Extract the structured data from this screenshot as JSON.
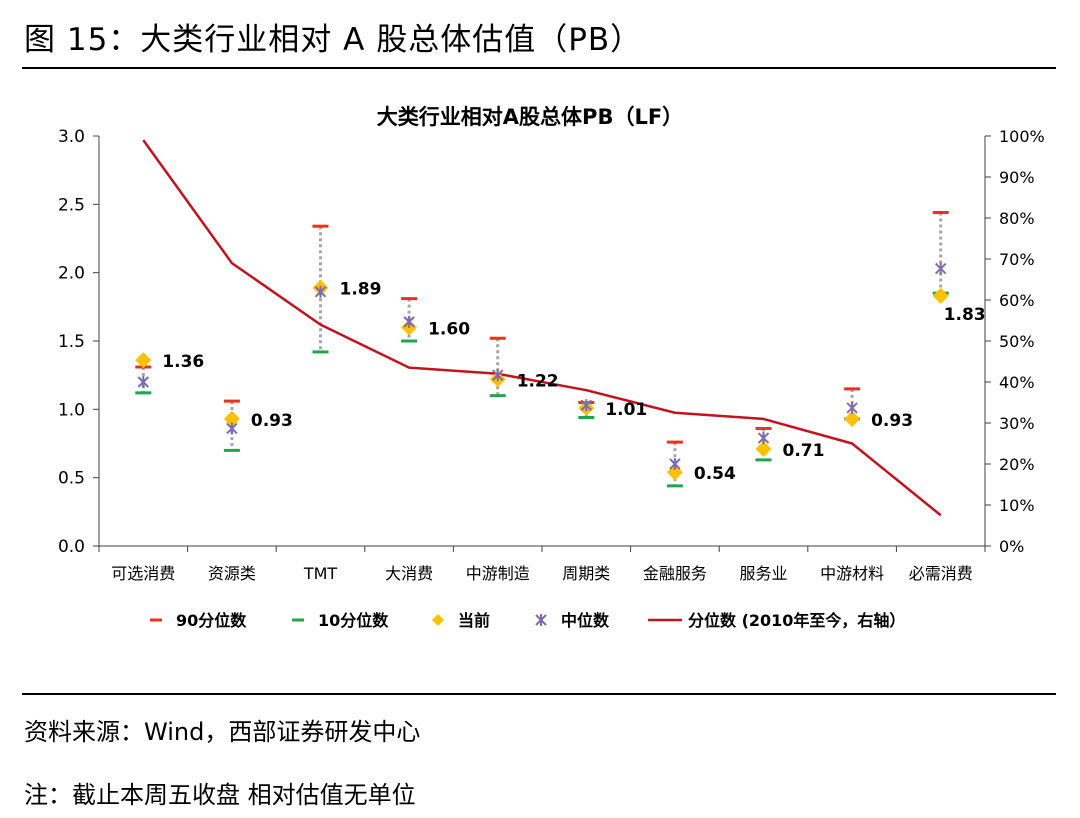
{
  "figure": {
    "title": "图 15：大类行业相对 A 股总体估值（PB）",
    "source": "资料来源：Wind，西部证券研发中心",
    "note": "注：截止本周五收盘 相对估值无单位"
  },
  "chart_data": {
    "type": "scatter",
    "title": "大类行业相对A股总体PB（LF）",
    "categories": [
      "可选消费",
      "资源类",
      "TMT",
      "大消费",
      "中游制造",
      "周期类",
      "金融服务",
      "服务业",
      "中游材料",
      "必需消费"
    ],
    "y_ticks": [
      "0.0",
      "0.5",
      "1.0",
      "1.5",
      "2.0",
      "2.5",
      "3.0"
    ],
    "y2_ticks": [
      "0%",
      "10%",
      "20%",
      "30%",
      "40%",
      "50%",
      "60%",
      "70%",
      "80%",
      "90%",
      "100%"
    ],
    "ylim": [
      0,
      3
    ],
    "y2lim": [
      0,
      100
    ],
    "series": [
      {
        "name": "90分位数",
        "values": [
          1.31,
          1.06,
          2.34,
          1.81,
          1.52,
          1.05,
          0.76,
          0.86,
          1.15,
          2.44
        ]
      },
      {
        "name": "10分位数",
        "values": [
          1.12,
          0.7,
          1.42,
          1.5,
          1.1,
          0.94,
          0.44,
          0.63,
          0.93,
          1.85
        ]
      },
      {
        "name": "当前",
        "values": [
          1.36,
          0.93,
          1.89,
          1.6,
          1.22,
          1.01,
          0.54,
          0.71,
          0.93,
          1.83
        ]
      },
      {
        "name": "中位数",
        "values": [
          1.2,
          0.86,
          1.86,
          1.64,
          1.25,
          1.03,
          0.6,
          0.79,
          1.01,
          2.03
        ]
      },
      {
        "name": "分位数（2010年至今，右轴）",
        "values": [
          99,
          69,
          54,
          43.5,
          42,
          38,
          32.5,
          31,
          25,
          7.5
        ]
      }
    ],
    "data_labels": [
      "1.36",
      "0.93",
      "1.89",
      "1.60",
      "1.22",
      "1.01",
      "0.54",
      "0.71",
      "0.93",
      "1.83"
    ],
    "legend": [
      {
        "label": "90分位数"
      },
      {
        "label": "10分位数"
      },
      {
        "label": "当前"
      },
      {
        "label": "中位数"
      },
      {
        "label": "分位数 (2010年至今，右轴）"
      }
    ],
    "colors": {
      "p90": "#e8321e",
      "p10": "#1fa64a",
      "current": "#ffc000",
      "median": "#7f6aad",
      "percentile_line": "#c0141e",
      "range": "#a6a6a6",
      "axis": "#404040"
    }
  }
}
